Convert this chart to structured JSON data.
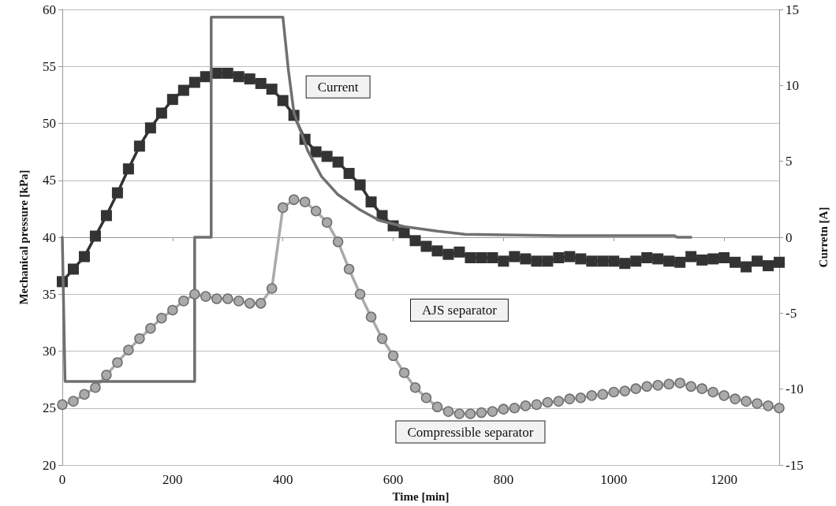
{
  "chart_data": {
    "type": "line",
    "xlabel": "Time [min]",
    "ylabel": "Mechanical pressure [kPa]",
    "y2label": "Curretn [A]",
    "xlim": [
      0,
      1300
    ],
    "xticks": [
      0,
      200,
      400,
      600,
      800,
      1000,
      1200
    ],
    "ylim": [
      20,
      60
    ],
    "yticks": [
      20,
      25,
      30,
      35,
      40,
      45,
      50,
      55,
      60
    ],
    "y2lim": [
      -15,
      15
    ],
    "y2ticks": [
      -15,
      -10,
      -5,
      0,
      5,
      10,
      15
    ],
    "grid": "y",
    "legend": false,
    "line_style": "solid",
    "series": [
      {
        "name": "AJS separator",
        "color": "#333333",
        "marker": "square",
        "x": [
          0,
          20,
          40,
          60,
          80,
          100,
          120,
          140,
          160,
          180,
          200,
          220,
          240,
          260,
          280,
          300,
          320,
          340,
          360,
          380,
          400,
          420,
          440,
          460,
          480,
          500,
          520,
          540,
          560,
          580,
          600,
          620,
          640,
          660,
          680,
          700,
          720,
          740,
          760,
          780,
          800,
          820,
          840,
          860,
          880,
          900,
          920,
          940,
          960,
          980,
          1000,
          1020,
          1040,
          1060,
          1080,
          1100,
          1120,
          1140,
          1160,
          1180,
          1200,
          1220,
          1240,
          1260,
          1280,
          1300
        ],
        "values": [
          36.1,
          37.2,
          38.3,
          40.1,
          41.9,
          43.9,
          46.0,
          48.0,
          49.6,
          50.9,
          52.1,
          52.9,
          53.6,
          54.1,
          54.4,
          54.4,
          54.1,
          53.9,
          53.5,
          53.0,
          52.0,
          50.7,
          48.6,
          47.5,
          47.1,
          46.6,
          45.6,
          44.6,
          43.1,
          41.9,
          41.0,
          40.4,
          39.7,
          39.2,
          38.8,
          38.5,
          38.7,
          38.2,
          38.2,
          38.2,
          37.9,
          38.3,
          38.1,
          37.9,
          37.9,
          38.2,
          38.3,
          38.1,
          37.9,
          37.9,
          37.9,
          37.7,
          37.9,
          38.2,
          38.1,
          37.9,
          37.8,
          38.3,
          38.0,
          38.1,
          38.2,
          37.8,
          37.4,
          37.9,
          37.5,
          37.8
        ]
      },
      {
        "name": "Compressible separator",
        "color": "#aaaaaa",
        "marker": "circle",
        "x": [
          0,
          20,
          40,
          60,
          80,
          100,
          120,
          140,
          160,
          180,
          200,
          220,
          240,
          260,
          280,
          300,
          320,
          340,
          360,
          380,
          400,
          420,
          440,
          460,
          480,
          500,
          520,
          540,
          560,
          580,
          600,
          620,
          640,
          660,
          680,
          700,
          720,
          740,
          760,
          780,
          800,
          820,
          840,
          860,
          880,
          900,
          920,
          940,
          960,
          980,
          1000,
          1020,
          1040,
          1060,
          1080,
          1100,
          1120,
          1140,
          1160,
          1180,
          1200,
          1220,
          1240,
          1260,
          1280,
          1300
        ],
        "values": [
          25.3,
          25.6,
          26.2,
          26.8,
          27.9,
          29.0,
          30.1,
          31.1,
          32.0,
          32.9,
          33.6,
          34.4,
          35.0,
          34.8,
          34.6,
          34.6,
          34.4,
          34.2,
          34.2,
          35.5,
          42.6,
          43.3,
          43.1,
          42.3,
          41.3,
          39.6,
          37.2,
          35.0,
          33.0,
          31.1,
          29.6,
          28.1,
          26.8,
          25.9,
          25.1,
          24.7,
          24.5,
          24.5,
          24.6,
          24.7,
          24.9,
          25.0,
          25.2,
          25.3,
          25.5,
          25.6,
          25.8,
          25.9,
          26.1,
          26.2,
          26.4,
          26.5,
          26.7,
          26.9,
          27.0,
          27.1,
          27.2,
          26.9,
          26.7,
          26.4,
          26.1,
          25.8,
          25.6,
          25.4,
          25.2,
          25.0
        ]
      },
      {
        "name": "Current",
        "color": "#707070",
        "marker": "none",
        "axis": "y2",
        "x": [
          0,
          5,
          240,
          240,
          270,
          270,
          400,
          410,
          420,
          445,
          470,
          500,
          540,
          575,
          620,
          680,
          730,
          800,
          900,
          1110,
          1115,
          1140
        ],
        "values": [
          0,
          -9.5,
          -9.5,
          0,
          0,
          14.5,
          14.5,
          11,
          8.2,
          5.7,
          4.0,
          2.8,
          1.8,
          1.1,
          0.7,
          0.4,
          0.2,
          0.15,
          0.1,
          0.1,
          0,
          0
        ]
      }
    ]
  }
}
